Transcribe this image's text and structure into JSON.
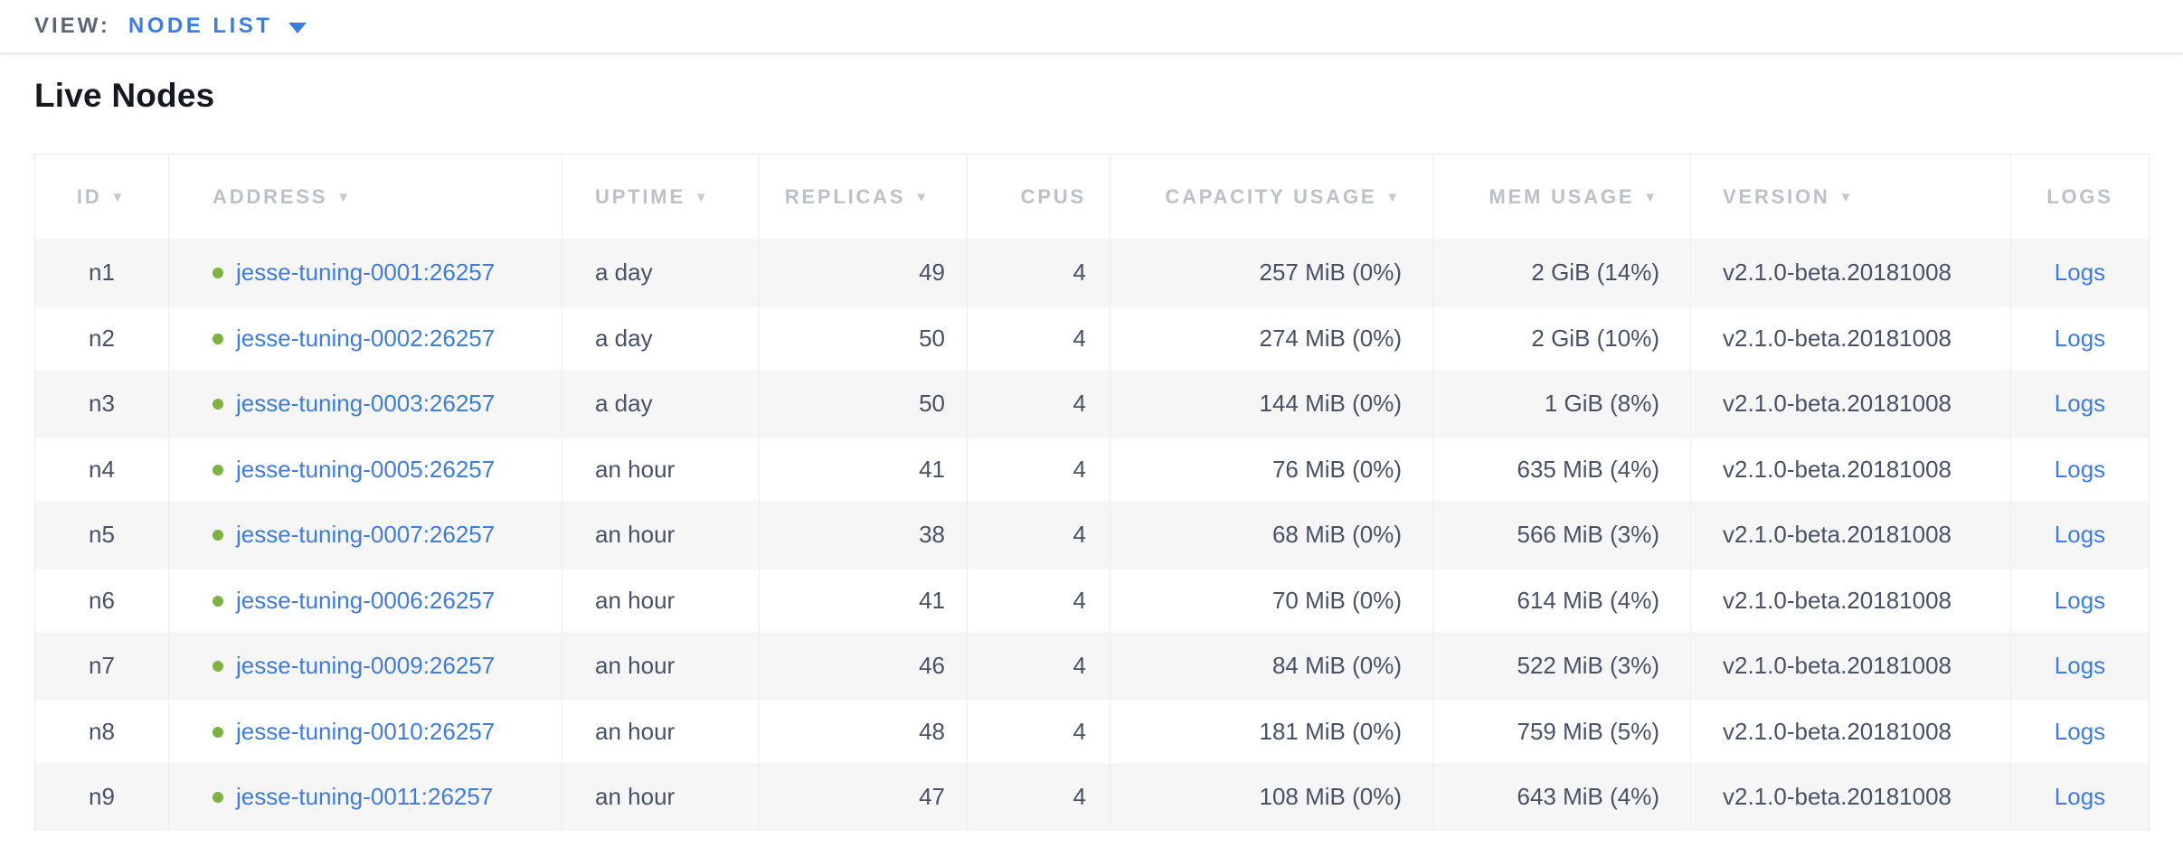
{
  "view_bar": {
    "label": "VIEW:",
    "selected": "NODE LIST",
    "accent_color": "#3b7de2"
  },
  "page": {
    "title": "Live Nodes"
  },
  "table": {
    "columns": [
      {
        "key": "id",
        "label": "ID",
        "sortable": true
      },
      {
        "key": "address",
        "label": "ADDRESS",
        "sortable": true
      },
      {
        "key": "uptime",
        "label": "UPTIME",
        "sortable": true
      },
      {
        "key": "replicas",
        "label": "REPLICAS",
        "sortable": true
      },
      {
        "key": "cpus",
        "label": "CPUS",
        "sortable": false
      },
      {
        "key": "capacity",
        "label": "CAPACITY USAGE",
        "sortable": true
      },
      {
        "key": "mem",
        "label": "MEM USAGE",
        "sortable": true
      },
      {
        "key": "version",
        "label": "VERSION",
        "sortable": true
      },
      {
        "key": "logs",
        "label": "LOGS",
        "sortable": false
      }
    ],
    "rows": [
      {
        "id": "n1",
        "address": "jesse-tuning-0001:26257",
        "status": "live",
        "uptime": "a day",
        "replicas": "49",
        "cpus": "4",
        "capacity": "257 MiB (0%)",
        "mem": "2 GiB (14%)",
        "version": "v2.1.0-beta.20181008",
        "logs": "Logs"
      },
      {
        "id": "n2",
        "address": "jesse-tuning-0002:26257",
        "status": "live",
        "uptime": "a day",
        "replicas": "50",
        "cpus": "4",
        "capacity": "274 MiB (0%)",
        "mem": "2 GiB (10%)",
        "version": "v2.1.0-beta.20181008",
        "logs": "Logs"
      },
      {
        "id": "n3",
        "address": "jesse-tuning-0003:26257",
        "status": "live",
        "uptime": "a day",
        "replicas": "50",
        "cpus": "4",
        "capacity": "144 MiB (0%)",
        "mem": "1 GiB (8%)",
        "version": "v2.1.0-beta.20181008",
        "logs": "Logs"
      },
      {
        "id": "n4",
        "address": "jesse-tuning-0005:26257",
        "status": "live",
        "uptime": "an hour",
        "replicas": "41",
        "cpus": "4",
        "capacity": "76 MiB (0%)",
        "mem": "635 MiB (4%)",
        "version": "v2.1.0-beta.20181008",
        "logs": "Logs"
      },
      {
        "id": "n5",
        "address": "jesse-tuning-0007:26257",
        "status": "live",
        "uptime": "an hour",
        "replicas": "38",
        "cpus": "4",
        "capacity": "68 MiB (0%)",
        "mem": "566 MiB (3%)",
        "version": "v2.1.0-beta.20181008",
        "logs": "Logs"
      },
      {
        "id": "n6",
        "address": "jesse-tuning-0006:26257",
        "status": "live",
        "uptime": "an hour",
        "replicas": "41",
        "cpus": "4",
        "capacity": "70 MiB (0%)",
        "mem": "614 MiB (4%)",
        "version": "v2.1.0-beta.20181008",
        "logs": "Logs"
      },
      {
        "id": "n7",
        "address": "jesse-tuning-0009:26257",
        "status": "live",
        "uptime": "an hour",
        "replicas": "46",
        "cpus": "4",
        "capacity": "84 MiB (0%)",
        "mem": "522 MiB (3%)",
        "version": "v2.1.0-beta.20181008",
        "logs": "Logs"
      },
      {
        "id": "n8",
        "address": "jesse-tuning-0010:26257",
        "status": "live",
        "uptime": "an hour",
        "replicas": "48",
        "cpus": "4",
        "capacity": "181 MiB (0%)",
        "mem": "759 MiB (5%)",
        "version": "v2.1.0-beta.20181008",
        "logs": "Logs"
      },
      {
        "id": "n9",
        "address": "jesse-tuning-0011:26257",
        "status": "live",
        "uptime": "an hour",
        "replicas": "47",
        "cpus": "4",
        "capacity": "108 MiB (0%)",
        "mem": "643 MiB (4%)",
        "version": "v2.1.0-beta.20181008",
        "logs": "Logs"
      }
    ],
    "colors": {
      "link": "#3e7ce0",
      "live_dot": "#7cb342",
      "header_text": "#bcc0c9",
      "cell_text": "#475266",
      "row_stripe": "#f6f6f7"
    },
    "icons": {
      "sort_caret": "▼"
    }
  }
}
